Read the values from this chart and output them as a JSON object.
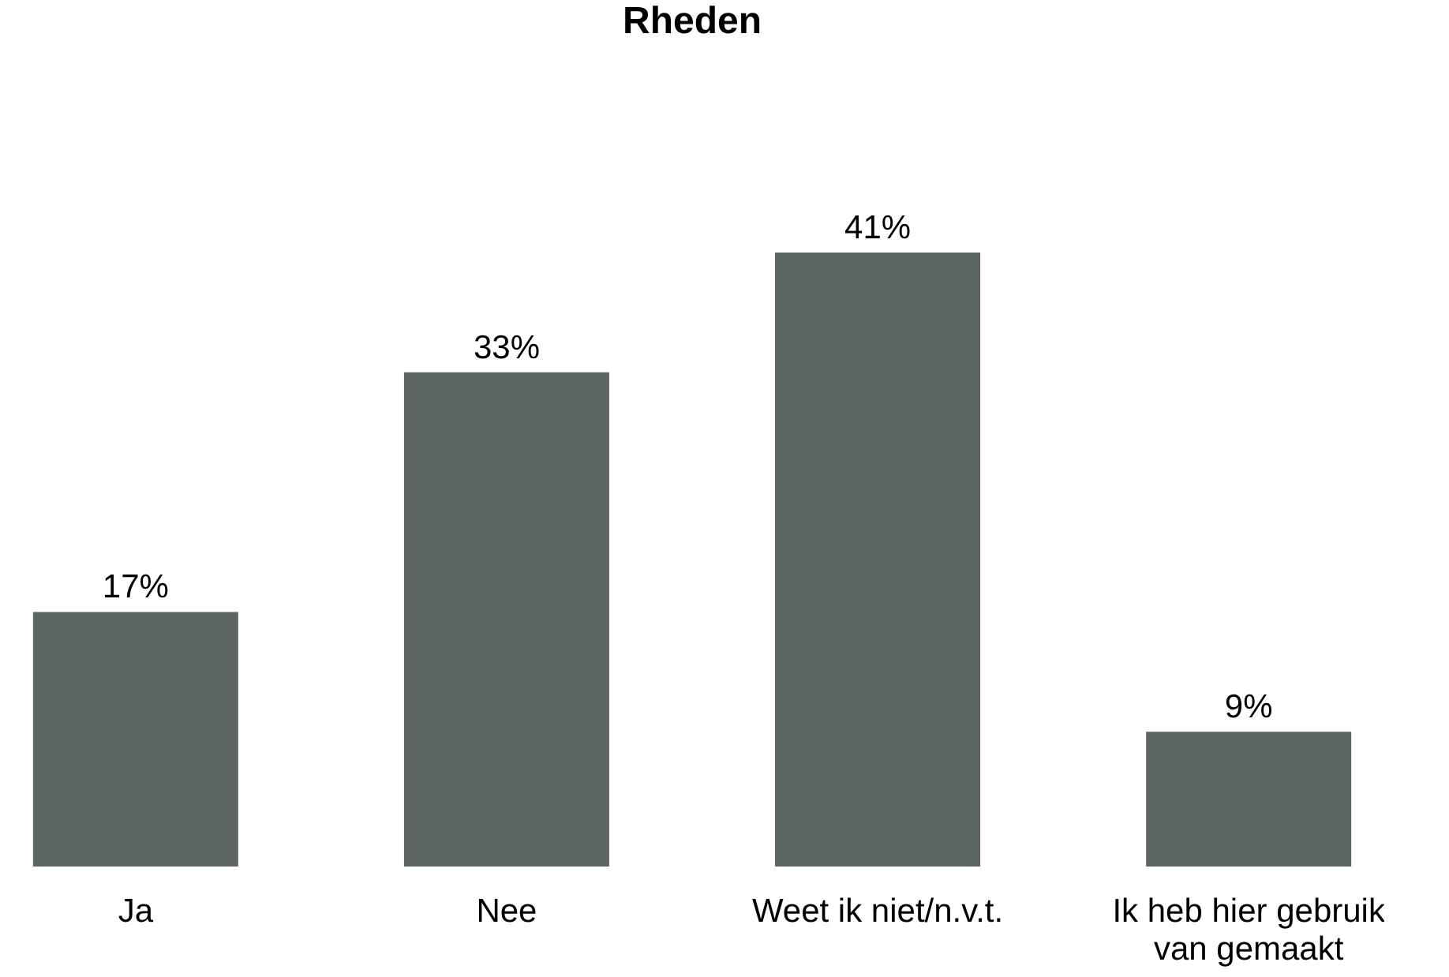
{
  "chart_data": {
    "type": "bar",
    "title": "Rheden",
    "categories": [
      "Ja",
      "Nee",
      "Weet ik niet/n.v.t.",
      "Ik heb hier gebruik van gemaakt"
    ],
    "values": [
      17,
      33,
      41,
      9
    ],
    "value_labels": [
      "17%",
      "33%",
      "41%",
      "9%"
    ],
    "color": "#5e6663"
  }
}
